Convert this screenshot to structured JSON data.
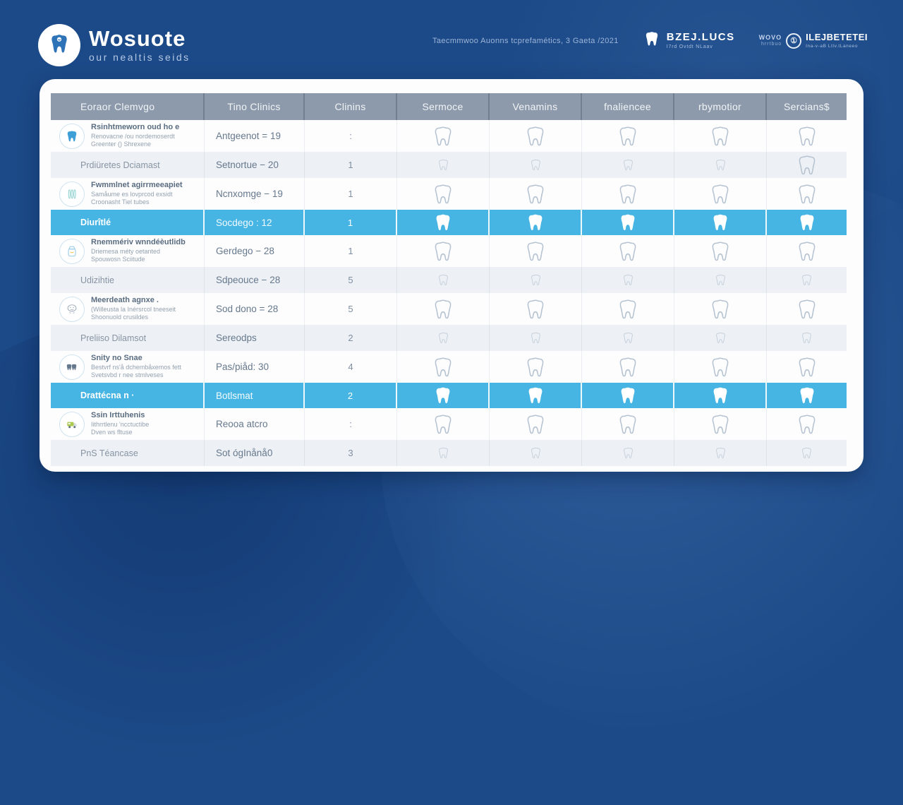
{
  "colors": {
    "background": "#1c4a88",
    "card": "#fdfdfe",
    "header_row": "#8d9aab",
    "highlight_row": "#47b5e3",
    "stripe_row": "#edf1f5",
    "brand_text": "#ffffff"
  },
  "header": {
    "logo": {
      "title": "Wosuote",
      "subtitle": "our nealtis seids"
    },
    "tagline": "Taecmmwoo Auonns tcprefamétics, 3 Gaeta /2021",
    "partner1": {
      "name": "BZEJ.LUCS",
      "sub": "I7rd Ovtdt NLaav"
    },
    "partner2": {
      "prefix": "WOVO",
      "prefix_sub": "hrrtbuo",
      "emblem": "①",
      "name": "ILEJBETETEI",
      "sub": "Ina-v-aB Ltlv.tLaneeo"
    }
  },
  "table": {
    "columns": [
      "Eoraor Clemvgo",
      "Tino Clinics",
      "Clinins",
      "Sermoce",
      "Venamins",
      "fnaliencee",
      "rbymotior",
      "Sercians$"
    ],
    "rows": [
      {
        "variant": "white",
        "icon": "tooth-icon",
        "title_lines": [
          "Rsinhtmeworn oud ho e",
          "Renovacne /ou nordemoserdt",
          "Greenter () Shrexene"
        ],
        "clinic": "Antgeenot = 19",
        "count": ":",
        "cells": [
          "tooth",
          "tooth",
          "tooth",
          "tooth",
          "tooth"
        ]
      },
      {
        "variant": "striped",
        "icon": null,
        "title_lines": [
          "Prdiüretes Dciamast"
        ],
        "clinic": "Setnortue − 20",
        "count": "1",
        "cells": [
          "tooth-sm",
          "tooth-sm",
          "tooth-sm",
          "tooth-sm",
          "tooth"
        ]
      },
      {
        "variant": "white",
        "icon": "tooth-roots-icon",
        "title_lines": [
          "Fwmmlnet agirrmeeapiet",
          "Samåume es lovprcod exsidt",
          "Croonasht Tiel tubes"
        ],
        "clinic": "Ncnxomge − 19",
        "count": "1",
        "cells": [
          "tooth",
          "tooth",
          "tooth",
          "tooth",
          "tooth"
        ]
      },
      {
        "variant": "highlight",
        "icon": null,
        "title_lines": [
          "Diurîtlé"
        ],
        "clinic": "Socdego : 12",
        "count": "1",
        "cells": [
          "tooth-fill",
          "tooth-fill",
          "tooth-fill",
          "tooth-fill",
          "tooth-fill"
        ]
      },
      {
        "variant": "white",
        "icon": "pouch-icon",
        "title_lines": [
          "Rnemmériv wnndéèutlidb",
          "Driemesa méty oetanted",
          "Spouwosn Sciitude"
        ],
        "clinic": "Gerdego − 28",
        "count": "1",
        "cells": [
          "tooth",
          "tooth",
          "tooth",
          "tooth",
          "tooth"
        ]
      },
      {
        "variant": "striped",
        "icon": null,
        "title_lines": [
          "Udizihtie"
        ],
        "clinic": "Sdpeouce − 28",
        "count": "5",
        "cells": [
          "tooth-sm",
          "tooth-sm",
          "tooth-sm",
          "tooth-sm",
          "tooth-sm"
        ]
      },
      {
        "variant": "white",
        "icon": "face-icon",
        "title_lines": [
          "Meerdeath agnxe .",
          "(Willeusta la Inérsrcol tneeseit",
          "Shoonuold crusildes"
        ],
        "clinic": "Sod dono = 28",
        "count": "5",
        "cells": [
          "tooth",
          "tooth",
          "tooth",
          "tooth",
          "tooth"
        ]
      },
      {
        "variant": "striped",
        "icon": null,
        "title_lines": [
          "Preliiso Dilamsot"
        ],
        "clinic": "Sereodps",
        "count": "2",
        "cells": [
          "tooth-sm",
          "tooth-sm",
          "tooth-sm",
          "tooth-sm",
          "tooth-sm"
        ]
      },
      {
        "variant": "white",
        "icon": "teeth-pair-icon",
        "title_lines": [
          "Snity no Snae",
          "Bestvrf ns'å dchembåxemos fett",
          "Svetsvbd r nee stmlveses"
        ],
        "clinic": "Pas/piåd: 30",
        "count": "4",
        "cells": [
          "tooth",
          "tooth",
          "tooth",
          "tooth",
          "tooth"
        ]
      },
      {
        "variant": "highlight",
        "icon": null,
        "title_lines": [
          "Drattécna   n ·"
        ],
        "clinic": "Botlsmat",
        "count": "2",
        "cells": [
          "tooth-fill",
          "tooth-fill",
          "tooth-fill",
          "tooth-fill",
          "tooth-fill"
        ]
      },
      {
        "variant": "white",
        "icon": "truck-icon",
        "title_lines": [
          "Ssin Irttuhenis",
          "Iithrrtlenu 'ncctuctibe",
          "Dven ws fltuse"
        ],
        "clinic": "Reooa atcro",
        "count": ":",
        "cells": [
          "tooth",
          "tooth",
          "tooth",
          "tooth",
          "tooth"
        ]
      },
      {
        "variant": "striped",
        "icon": null,
        "title_lines": [
          "PnS Téancase"
        ],
        "clinic": "Sot ógInånå0",
        "count": "3",
        "cells": [
          "tooth-sm",
          "tooth-sm",
          "tooth-sm",
          "tooth-sm",
          "tooth-sm"
        ]
      }
    ]
  }
}
